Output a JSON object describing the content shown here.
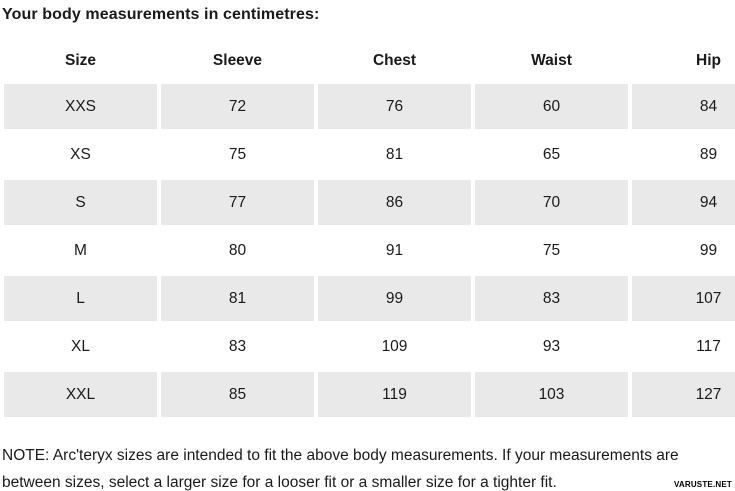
{
  "title": "Your body measurements in centimetres:",
  "table": {
    "columns": [
      "Size",
      "Sleeve",
      "Chest",
      "Waist",
      "Hip"
    ],
    "rows": [
      {
        "size": "XXS",
        "sleeve": 72,
        "chest": 76,
        "waist": 60,
        "hip": 84
      },
      {
        "size": "XS",
        "sleeve": 75,
        "chest": 81,
        "waist": 65,
        "hip": 89
      },
      {
        "size": "S",
        "sleeve": 77,
        "chest": 86,
        "waist": 70,
        "hip": 94
      },
      {
        "size": "M",
        "sleeve": 80,
        "chest": 91,
        "waist": 75,
        "hip": 99
      },
      {
        "size": "L",
        "sleeve": 81,
        "chest": 99,
        "waist": 83,
        "hip": 107
      },
      {
        "size": "XL",
        "sleeve": 83,
        "chest": 109,
        "waist": 93,
        "hip": 117
      },
      {
        "size": "XXL",
        "sleeve": 85,
        "chest": 119,
        "waist": 103,
        "hip": 127
      }
    ]
  },
  "note": "NOTE: Arc'teryx sizes are intended to fit the above body measurements. If your measurements are between sizes, select a larger size for a looser fit or a smaller size for a tighter fit.",
  "watermark": "VARUSTE.NET",
  "colors": {
    "row_shade": "#e9e9e9",
    "text": "#1a1a1a"
  }
}
